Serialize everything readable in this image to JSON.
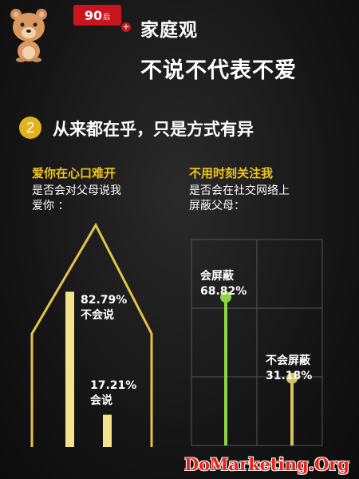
{
  "header": {
    "badge_number": "90",
    "badge_suffix": "后",
    "plus_glyph": "+",
    "title_line1": "家庭观",
    "title_line2": "不说不代表不爱"
  },
  "section": {
    "number": "2",
    "title": "从来都在乎，只是方式有异"
  },
  "left_panel": {
    "title": "爱你在心口难开",
    "question_line1": "是否会对父母说我",
    "question_line2": "爱你 ："
  },
  "right_panel": {
    "title": "不用时刻关注我",
    "question_line1": "是否会在社交网络上",
    "question_line2": "屏蔽父母："
  },
  "watermark": "DoMarketing.Org",
  "colors": {
    "accent_yellow": "#f0c419",
    "bar_cream": "#f4e28c",
    "green": "#8cd646",
    "brand_red": "#c8151e"
  },
  "chart_data": [
    {
      "type": "bar",
      "title": "爱你在心口难开",
      "categories": [
        "不会说",
        "会说"
      ],
      "values": [
        82.79,
        17.21
      ],
      "value_labels": [
        "82.79%",
        "17.21%"
      ],
      "ylim": [
        0,
        100
      ]
    },
    {
      "type": "bar",
      "title": "不用时刻关注我",
      "categories": [
        "会屏蔽",
        "不会屏蔽"
      ],
      "values": [
        68.82,
        31.18
      ],
      "value_labels": [
        "68.82%",
        "31.18%"
      ],
      "ylim": [
        0,
        100
      ]
    }
  ]
}
